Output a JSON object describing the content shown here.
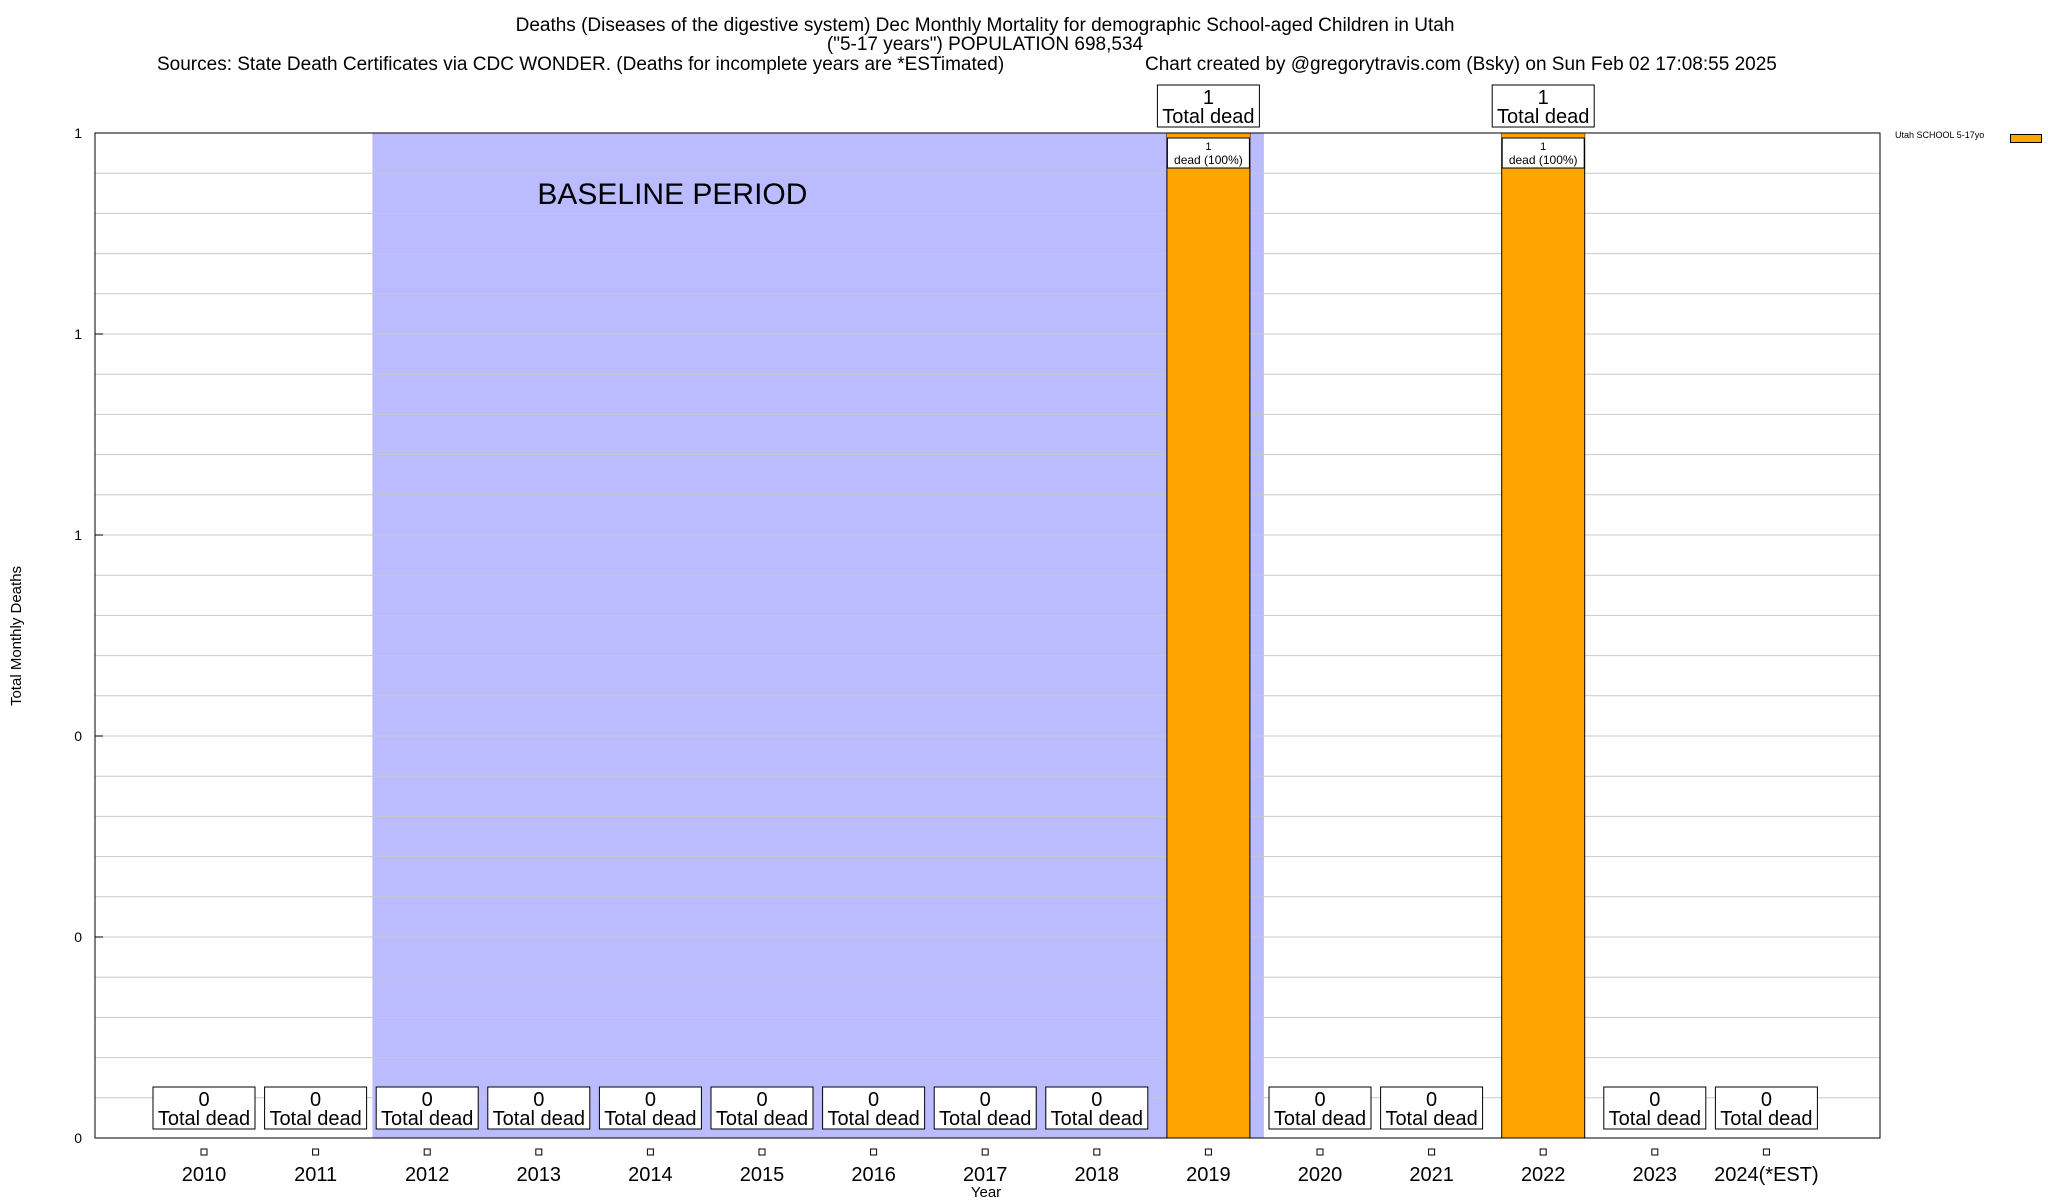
{
  "chart_data": {
    "type": "bar",
    "title_line1": "Deaths (Diseases of the digestive system) Dec Monthly Mortality for demographic School-aged Children in Utah",
    "title_line2": "(\"5-17 years\") POPULATION 698,534",
    "sources": "Sources: State Death Certificates via CDC WONDER. (Deaths for incomplete years are *ESTimated)",
    "credit": "Chart created by @gregorytravis.com (Bsky) on Sun Feb 02 17:08:55 2025",
    "xlabel": "Year",
    "ylabel": "Total Monthly Deaths",
    "ylim": [
      0,
      1
    ],
    "y_tick_labels": [
      "0",
      "0",
      "0",
      "1",
      "1",
      "1"
    ],
    "grid": true,
    "legend_position": "top-right",
    "categories": [
      "2010",
      "2011",
      "2012",
      "2013",
      "2014",
      "2015",
      "2016",
      "2017",
      "2018",
      "2019",
      "2020",
      "2021",
      "2022",
      "2023",
      "2024(*EST)"
    ],
    "series": [
      {
        "name": "Utah SCHOOL 5-17yo",
        "color": "#FFA500",
        "values": [
          0,
          0,
          0,
          0,
          0,
          0,
          0,
          0,
          0,
          1,
          0,
          0,
          1,
          0,
          0
        ]
      }
    ],
    "total_labels": [
      "0",
      "0",
      "0",
      "0",
      "0",
      "0",
      "0",
      "0",
      "0",
      "1",
      "0",
      "0",
      "1",
      "0",
      "0"
    ],
    "total_caption": "Total dead",
    "bar_inner_labels": [
      {
        "category": "2019",
        "line1": "1",
        "line2": "dead (100%)"
      },
      {
        "category": "2022",
        "line1": "1",
        "line2": "dead (100%)"
      }
    ],
    "baseline": {
      "label": "BASELINE PERIOD",
      "from": "2012",
      "to": "2019",
      "color": "#BBBBFF"
    }
  }
}
